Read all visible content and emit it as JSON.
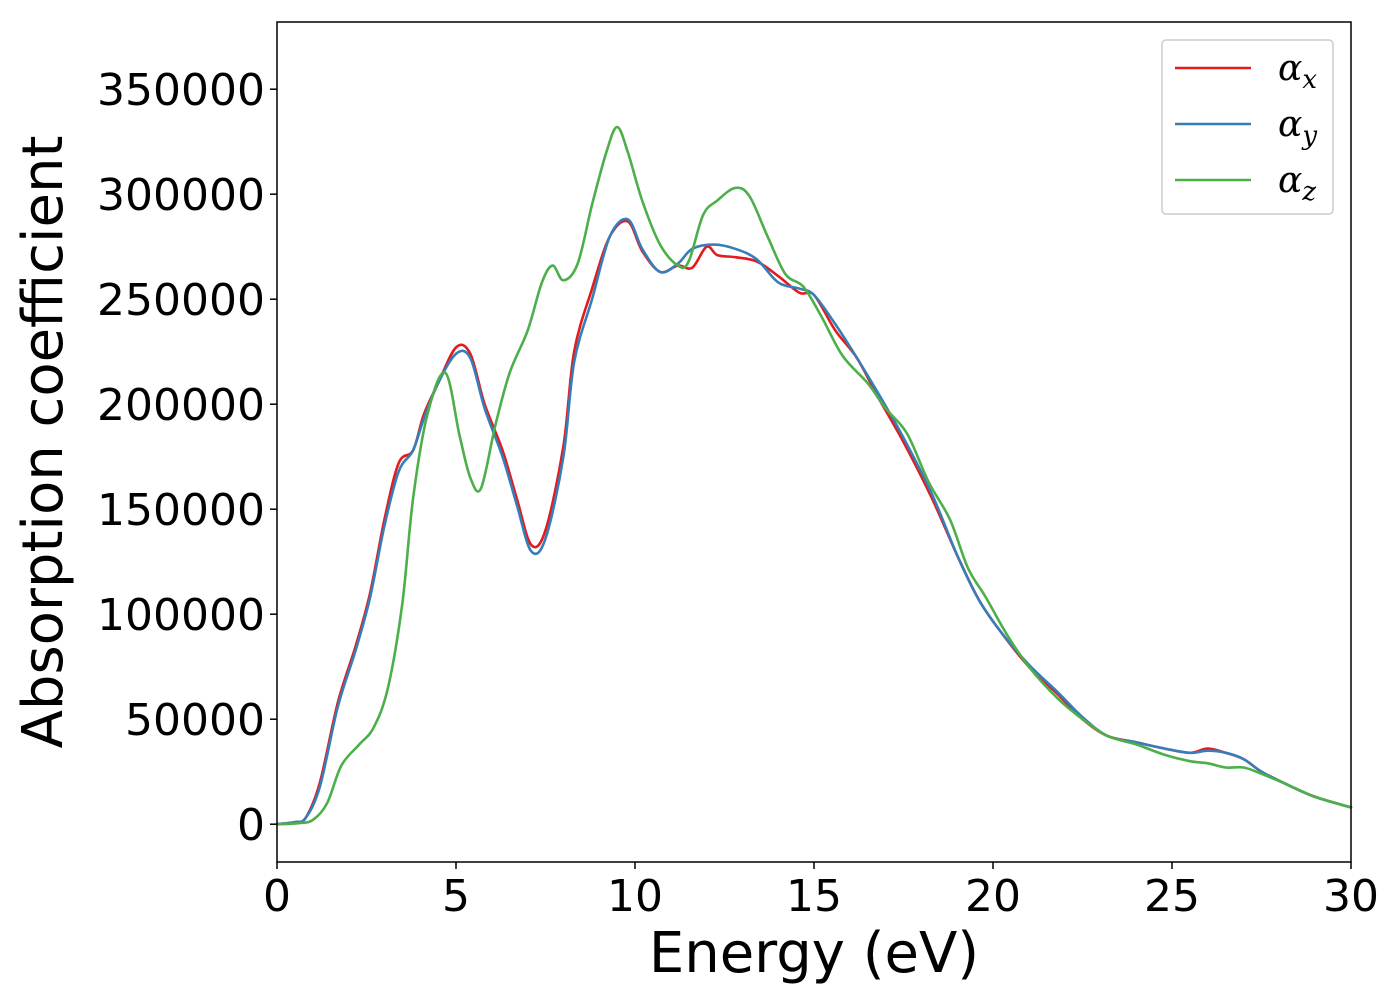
{
  "chart_data": {
    "type": "line",
    "title": "",
    "xlabel": "Energy (eV)",
    "ylabel": "Absorption coefficient",
    "xlim": [
      0,
      30
    ],
    "ylim": [
      -18000,
      382000
    ],
    "xticks": [
      0,
      5,
      10,
      15,
      20,
      25,
      30
    ],
    "xtick_labels": [
      "0",
      "5",
      "10",
      "15",
      "20",
      "25",
      "30"
    ],
    "yticks": [
      0,
      50000,
      100000,
      150000,
      200000,
      250000,
      300000,
      350000
    ],
    "ytick_labels": [
      "0",
      "50000",
      "100000",
      "150000",
      "200000",
      "250000",
      "300000",
      "350000"
    ],
    "grid": false,
    "legend_position": "top-right",
    "series": [
      {
        "name": "αx",
        "legend_symbol": "α",
        "legend_subscript": "x",
        "color": "#e41a1c",
        "points": [
          [
            0,
            0
          ],
          [
            0.5,
            1000
          ],
          [
            0.8,
            3000
          ],
          [
            1.2,
            20000
          ],
          [
            1.7,
            58000
          ],
          [
            2.2,
            85000
          ],
          [
            2.6,
            110000
          ],
          [
            3.0,
            145000
          ],
          [
            3.4,
            172000
          ],
          [
            3.8,
            178000
          ],
          [
            4.1,
            195000
          ],
          [
            4.5,
            210000
          ],
          [
            5.0,
            227000
          ],
          [
            5.4,
            224000
          ],
          [
            5.8,
            200000
          ],
          [
            6.3,
            178000
          ],
          [
            6.7,
            155000
          ],
          [
            7.1,
            133000
          ],
          [
            7.5,
            140000
          ],
          [
            8.0,
            180000
          ],
          [
            8.3,
            225000
          ],
          [
            8.8,
            255000
          ],
          [
            9.3,
            280000
          ],
          [
            9.8,
            287000
          ],
          [
            10.2,
            273000
          ],
          [
            10.7,
            263000
          ],
          [
            11.2,
            266000
          ],
          [
            11.6,
            265000
          ],
          [
            12.0,
            275000
          ],
          [
            12.3,
            271000
          ],
          [
            12.8,
            270000
          ],
          [
            13.4,
            268000
          ],
          [
            14.0,
            261000
          ],
          [
            14.6,
            253000
          ],
          [
            15.0,
            252000
          ],
          [
            15.6,
            235000
          ],
          [
            16.2,
            222000
          ],
          [
            16.8,
            203000
          ],
          [
            17.5,
            182000
          ],
          [
            18.3,
            155000
          ],
          [
            19.0,
            128000
          ],
          [
            19.6,
            107000
          ],
          [
            20.2,
            92000
          ],
          [
            21.0,
            75000
          ],
          [
            21.8,
            62000
          ],
          [
            22.5,
            50000
          ],
          [
            23.2,
            42000
          ],
          [
            24.0,
            39000
          ],
          [
            24.8,
            36000
          ],
          [
            25.5,
            34000
          ],
          [
            26.0,
            36000
          ],
          [
            26.5,
            34000
          ],
          [
            27.0,
            31000
          ],
          [
            27.5,
            25000
          ],
          [
            28.2,
            19000
          ],
          [
            29.0,
            13000
          ],
          [
            30.0,
            8000
          ]
        ]
      },
      {
        "name": "αy",
        "legend_symbol": "α",
        "legend_subscript": "y",
        "color": "#377eb8",
        "points": [
          [
            0,
            0
          ],
          [
            0.5,
            1000
          ],
          [
            0.8,
            3000
          ],
          [
            1.2,
            18000
          ],
          [
            1.7,
            56000
          ],
          [
            2.2,
            83000
          ],
          [
            2.6,
            108000
          ],
          [
            3.0,
            142000
          ],
          [
            3.4,
            168000
          ],
          [
            3.8,
            178000
          ],
          [
            4.1,
            193000
          ],
          [
            4.5,
            210000
          ],
          [
            5.0,
            224000
          ],
          [
            5.4,
            222000
          ],
          [
            5.8,
            198000
          ],
          [
            6.3,
            175000
          ],
          [
            6.7,
            152000
          ],
          [
            7.1,
            130000
          ],
          [
            7.5,
            136000
          ],
          [
            8.0,
            175000
          ],
          [
            8.3,
            220000
          ],
          [
            8.8,
            250000
          ],
          [
            9.3,
            280000
          ],
          [
            9.8,
            288000
          ],
          [
            10.2,
            274000
          ],
          [
            10.7,
            263000
          ],
          [
            11.2,
            267000
          ],
          [
            11.6,
            274000
          ],
          [
            12.2,
            276000
          ],
          [
            12.8,
            274000
          ],
          [
            13.4,
            269000
          ],
          [
            14.0,
            258000
          ],
          [
            14.6,
            255000
          ],
          [
            15.0,
            252000
          ],
          [
            15.6,
            238000
          ],
          [
            16.2,
            222000
          ],
          [
            16.8,
            205000
          ],
          [
            17.5,
            184000
          ],
          [
            18.3,
            157000
          ],
          [
            19.0,
            128000
          ],
          [
            19.6,
            107000
          ],
          [
            20.2,
            92000
          ],
          [
            21.0,
            76000
          ],
          [
            21.8,
            63000
          ],
          [
            22.5,
            51000
          ],
          [
            23.2,
            42000
          ],
          [
            24.0,
            39000
          ],
          [
            24.8,
            36000
          ],
          [
            25.5,
            34000
          ],
          [
            26.0,
            35000
          ],
          [
            26.5,
            34000
          ],
          [
            27.0,
            31000
          ],
          [
            27.5,
            25000
          ],
          [
            28.2,
            19000
          ],
          [
            29.0,
            13000
          ],
          [
            30.0,
            8000
          ]
        ]
      },
      {
        "name": "αz",
        "legend_symbol": "α",
        "legend_subscript": "z",
        "color": "#4daf4a",
        "points": [
          [
            0,
            0
          ],
          [
            0.6,
            500
          ],
          [
            1.0,
            2000
          ],
          [
            1.4,
            10000
          ],
          [
            1.8,
            28000
          ],
          [
            2.3,
            38000
          ],
          [
            2.7,
            46000
          ],
          [
            3.1,
            65000
          ],
          [
            3.5,
            105000
          ],
          [
            3.8,
            155000
          ],
          [
            4.2,
            195000
          ],
          [
            4.7,
            215000
          ],
          [
            5.1,
            185000
          ],
          [
            5.4,
            165000
          ],
          [
            5.7,
            160000
          ],
          [
            6.1,
            190000
          ],
          [
            6.5,
            215000
          ],
          [
            7.0,
            235000
          ],
          [
            7.4,
            258000
          ],
          [
            7.7,
            266000
          ],
          [
            8.0,
            259000
          ],
          [
            8.4,
            267000
          ],
          [
            8.8,
            295000
          ],
          [
            9.2,
            320000
          ],
          [
            9.5,
            332000
          ],
          [
            9.8,
            320000
          ],
          [
            10.2,
            297000
          ],
          [
            10.7,
            276000
          ],
          [
            11.2,
            266000
          ],
          [
            11.5,
            268000
          ],
          [
            11.9,
            290000
          ],
          [
            12.3,
            297000
          ],
          [
            12.8,
            303000
          ],
          [
            13.2,
            299000
          ],
          [
            13.7,
            280000
          ],
          [
            14.2,
            262000
          ],
          [
            14.7,
            256000
          ],
          [
            15.2,
            242000
          ],
          [
            15.8,
            223000
          ],
          [
            16.5,
            210000
          ],
          [
            17.0,
            198000
          ],
          [
            17.6,
            186000
          ],
          [
            18.2,
            163000
          ],
          [
            18.8,
            145000
          ],
          [
            19.3,
            122000
          ],
          [
            19.8,
            108000
          ],
          [
            20.4,
            90000
          ],
          [
            21.0,
            75000
          ],
          [
            21.8,
            60000
          ],
          [
            22.5,
            50000
          ],
          [
            23.2,
            42000
          ],
          [
            24.0,
            38000
          ],
          [
            24.8,
            33000
          ],
          [
            25.5,
            30000
          ],
          [
            26.0,
            29000
          ],
          [
            26.5,
            27000
          ],
          [
            27.0,
            27000
          ],
          [
            27.5,
            24000
          ],
          [
            28.2,
            19000
          ],
          [
            29.0,
            13000
          ],
          [
            30.0,
            8000
          ]
        ]
      }
    ]
  }
}
